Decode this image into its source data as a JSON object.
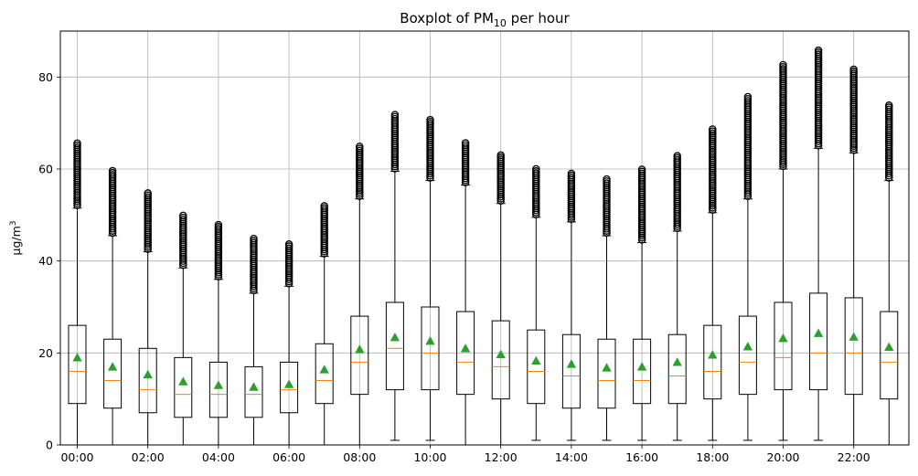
{
  "chart_data": {
    "type": "boxplot",
    "title_main": "Boxplot of PM",
    "title_sub": "10",
    "title_rest": " per hour",
    "ylabel_main": "µg/m",
    "ylabel_sup": "3",
    "xlabel": "",
    "ylim": [
      0,
      90
    ],
    "yticks": [
      0,
      20,
      40,
      60,
      80
    ],
    "grid": true,
    "xtick_labels": [
      "00:00",
      "02:00",
      "04:00",
      "06:00",
      "08:00",
      "10:00",
      "12:00",
      "14:00",
      "16:00",
      "18:00",
      "20:00",
      "22:00"
    ],
    "categories": [
      "00:00",
      "01:00",
      "02:00",
      "03:00",
      "04:00",
      "05:00",
      "06:00",
      "07:00",
      "08:00",
      "09:00",
      "10:00",
      "11:00",
      "12:00",
      "13:00",
      "14:00",
      "15:00",
      "16:00",
      "17:00",
      "18:00",
      "19:00",
      "20:00",
      "21:00",
      "22:00",
      "23:00"
    ],
    "whisker_low": [
      0,
      0,
      0,
      0,
      0,
      0,
      0,
      0,
      0,
      1,
      1,
      0,
      0,
      1,
      1,
      1,
      1,
      1,
      1,
      1,
      1,
      1,
      0,
      0
    ],
    "q1": [
      9,
      8,
      7,
      6,
      6,
      6,
      7,
      9,
      11,
      12,
      12,
      11,
      10,
      9,
      8,
      8,
      9,
      9,
      10,
      11,
      12,
      12,
      11,
      10
    ],
    "median": [
      16,
      14,
      12,
      11,
      11,
      11,
      12,
      14,
      18,
      21,
      20,
      18,
      17,
      16,
      15,
      14,
      14,
      15,
      16,
      18,
      19,
      20,
      20,
      18
    ],
    "q3": [
      26,
      23,
      21,
      19,
      18,
      17,
      18,
      22,
      28,
      31,
      30,
      29,
      27,
      25,
      24,
      23,
      23,
      24,
      26,
      28,
      31,
      33,
      32,
      29
    ],
    "whisker_high": [
      51.5,
      45.5,
      42,
      38.5,
      36,
      33,
      34.5,
      41,
      53.5,
      59.5,
      57.5,
      56.5,
      52.5,
      49.5,
      48.5,
      45.5,
      44,
      46.5,
      50.5,
      53.5,
      60,
      64.5,
      63.5,
      57.5
    ],
    "mean": [
      19,
      17,
      15.3,
      13.8,
      13,
      12.6,
      13.2,
      16.4,
      20.8,
      23.4,
      22.6,
      21,
      19.7,
      18.3,
      17.6,
      16.8,
      17,
      18,
      19.6,
      21.4,
      23.2,
      24.3,
      23.5,
      21.3
    ],
    "flier_max": [
      66,
      60,
      55,
      50,
      48,
      45,
      44,
      52,
      65,
      72,
      71,
      66,
      63,
      60,
      59,
      58,
      60,
      63,
      69,
      76,
      83,
      86,
      82,
      74
    ],
    "colors": {
      "box": "#000000",
      "median": "#ff7f0e",
      "mean": "#2ca02c",
      "grid": "#b0b0b0"
    }
  }
}
